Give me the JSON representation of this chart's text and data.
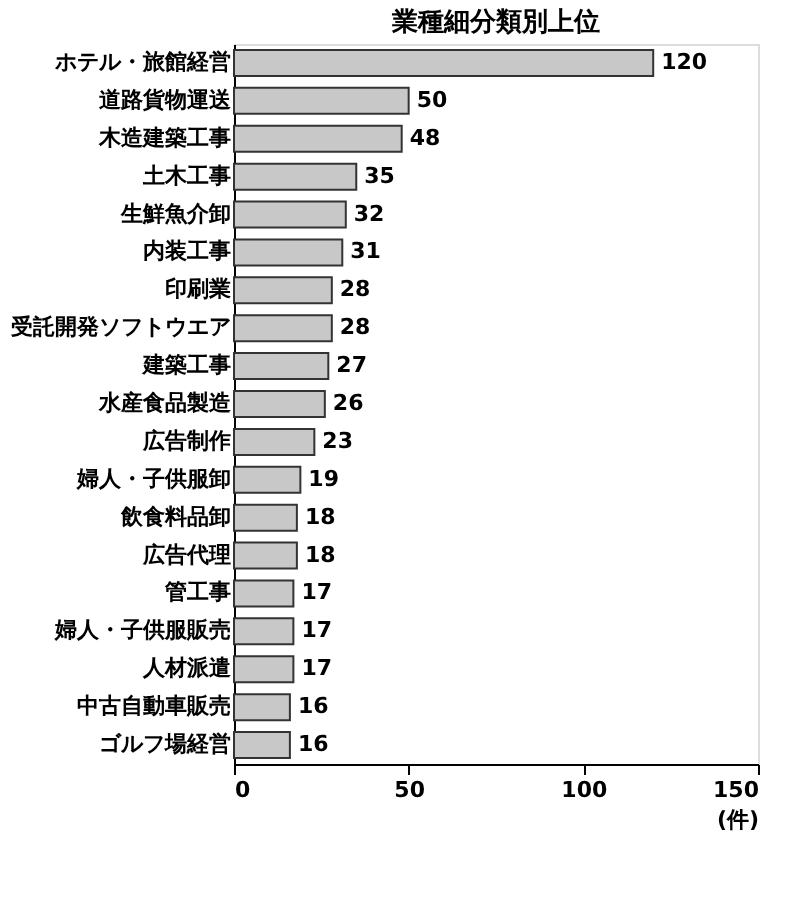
{
  "chart_data": {
    "type": "bar",
    "orientation": "horizontal",
    "title": "業種細分類別上位",
    "xlabel": "(件)",
    "categories": [
      "ホテル・旅館経営",
      "道路貨物運送",
      "木造建築工事",
      "土木工事",
      "生鮮魚介卸",
      "内装工事",
      "印刷業",
      "受託開発ソフトウエア",
      "建築工事",
      "水産食品製造",
      "広告制作",
      "婦人・子供服卸",
      "飲食料品卸",
      "広告代理",
      "管工事",
      "婦人・子供服販売",
      "人材派遣",
      "中古自動車販売",
      "ゴルフ場経営"
    ],
    "values": [
      120,
      50,
      48,
      35,
      32,
      31,
      28,
      28,
      27,
      26,
      23,
      19,
      18,
      18,
      17,
      17,
      17,
      16,
      16
    ],
    "color": "#c8c8c8",
    "xlim": [
      0,
      150
    ],
    "xticks": [
      0,
      50,
      100,
      150
    ],
    "data_labels": true
  }
}
